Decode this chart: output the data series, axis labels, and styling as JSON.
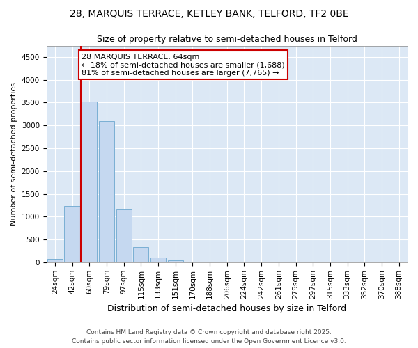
{
  "title1": "28, MARQUIS TERRACE, KETLEY BANK, TELFORD, TF2 0BE",
  "title2": "Size of property relative to semi-detached houses in Telford",
  "xlabel": "Distribution of semi-detached houses by size in Telford",
  "ylabel": "Number of semi-detached properties",
  "categories": [
    "24sqm",
    "42sqm",
    "60sqm",
    "79sqm",
    "97sqm",
    "115sqm",
    "133sqm",
    "151sqm",
    "170sqm",
    "188sqm",
    "206sqm",
    "224sqm",
    "242sqm",
    "261sqm",
    "279sqm",
    "297sqm",
    "315sqm",
    "333sqm",
    "352sqm",
    "370sqm",
    "388sqm"
  ],
  "values": [
    70,
    1230,
    3520,
    3100,
    1160,
    340,
    110,
    40,
    5,
    2,
    2,
    2,
    1,
    1,
    1,
    1,
    1,
    1,
    1,
    1,
    1
  ],
  "bar_color": "#c5d8f0",
  "bar_edge_color": "#7aafd4",
  "vline_color": "#cc0000",
  "vline_x": 1.5,
  "annotation_text": "28 MARQUIS TERRACE: 64sqm\n← 18% of semi-detached houses are smaller (1,688)\n81% of semi-detached houses are larger (7,765) →",
  "annotation_box_color": "#ffffff",
  "annotation_edge_color": "#cc0000",
  "footer1": "Contains HM Land Registry data © Crown copyright and database right 2025.",
  "footer2": "Contains public sector information licensed under the Open Government Licence v3.0.",
  "bg_color": "#ffffff",
  "plot_bg_color": "#dce8f5",
  "grid_color": "#ffffff",
  "ylim": [
    0,
    4750
  ],
  "yticks": [
    0,
    500,
    1000,
    1500,
    2000,
    2500,
    3000,
    3500,
    4000,
    4500
  ],
  "title1_fontsize": 10,
  "title2_fontsize": 9,
  "ylabel_fontsize": 8,
  "xlabel_fontsize": 9,
  "tick_fontsize": 7.5,
  "annot_fontsize": 8,
  "footer_fontsize": 6.5
}
